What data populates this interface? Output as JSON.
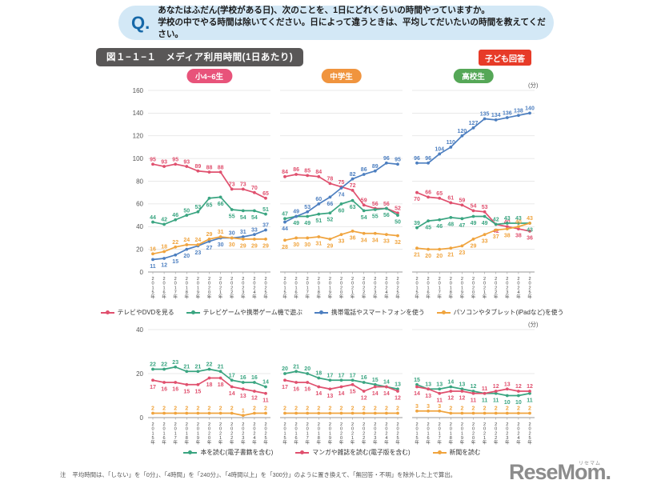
{
  "header": {
    "q_label": "Q.",
    "line1": "あなたはふだん(学校がある日)、次のことを、1日にどれくらいの時間やっていますか。",
    "line2": "学校の中でやる時間は除いてください。日によって違うときは、平均してだいたいの時間を教えてください。"
  },
  "title": {
    "figure_label": "図１−１−１　メディア利用時間(1日あたり)",
    "respondent_badge": "子ども回答"
  },
  "groups": [
    {
      "label": "小4~6生",
      "color": "#e8537a"
    },
    {
      "label": "中学生",
      "color": "#f0943e"
    },
    {
      "label": "高校生",
      "color": "#55a757"
    }
  ],
  "note": {
    "label": "注",
    "text": "平均時間は、「しない」を「0分」、「4時間」を「240分」、「4時間以上」を「300分」のように置き換えて、「無回答・不明」を除外した上で算出。"
  },
  "logo": {
    "brand": "ReseMom.",
    "ruby": "リセマム"
  },
  "chart_data": [
    {
      "type": "line",
      "title": "メディア利用時間(1日あたり) 上段",
      "unit": "(分)",
      "x": [
        "2015年",
        "2016年",
        "2017年",
        "2018年",
        "2019年",
        "2020年",
        "2021年",
        "2022年",
        "2023年",
        "2024年",
        "2025年"
      ],
      "ylim": [
        0,
        160
      ],
      "yticks": [
        0,
        20,
        40,
        60,
        80,
        100,
        120,
        140,
        160
      ],
      "grid": true,
      "legend_position": "bottom",
      "panels": [
        {
          "label": "小4~6生",
          "series": [
            {
              "name": "テレビやDVDを見る",
              "color": "#e0506e",
              "values": [
                95,
                93,
                95,
                93,
                89,
                88,
                88,
                73,
                73,
                70,
                65
              ]
            },
            {
              "name": "テレビゲームや携帯ゲーム機で遊ぶ",
              "color": "#3aa581",
              "values": [
                44,
                42,
                46,
                50,
                53,
                65,
                66,
                55,
                54,
                54,
                51
              ]
            },
            {
              "name": "携帯電話やスマートフォンを使う",
              "color": "#4d7fc0",
              "values": [
                11,
                12,
                15,
                20,
                23,
                27,
                30,
                30,
                31,
                33,
                37
              ]
            },
            {
              "name": "パソコンやタブレット(iPadなど)を使う",
              "color": "#f0a43e",
              "values": [
                16,
                18,
                22,
                24,
                24,
                29,
                31,
                30,
                29,
                29,
                29
              ]
            }
          ]
        },
        {
          "label": "中学生",
          "series": [
            {
              "name": "テレビやDVDを見る",
              "color": "#e0506e",
              "values": [
                84,
                86,
                85,
                84,
                78,
                75,
                72,
                59,
                56,
                56,
                52
              ]
            },
            {
              "name": "テレビゲームや携帯ゲーム機で遊ぶ",
              "color": "#3aa581",
              "values": [
                47,
                49,
                49,
                51,
                52,
                60,
                63,
                54,
                55,
                56,
                50
              ]
            },
            {
              "name": "携帯電話やスマートフォンを使う",
              "color": "#4d7fc0",
              "values": [
                44,
                49,
                53,
                60,
                66,
                74,
                82,
                86,
                89,
                96,
                95
              ]
            },
            {
              "name": "パソコンやタブレット(iPadなど)を使う",
              "color": "#f0a43e",
              "values": [
                28,
                30,
                30,
                31,
                29,
                33,
                36,
                34,
                34,
                33,
                32
              ]
            }
          ]
        },
        {
          "label": "高校生",
          "series": [
            {
              "name": "テレビやDVDを見る",
              "color": "#e0506e",
              "values": [
                70,
                66,
                65,
                61,
                59,
                54,
                53,
                42,
                40,
                38,
                36
              ]
            },
            {
              "name": "テレビゲームや携帯ゲーム機で遊ぶ",
              "color": "#3aa581",
              "values": [
                39,
                45,
                46,
                48,
                47,
                49,
                49,
                42,
                43,
                43,
                43
              ]
            },
            {
              "name": "携帯電話やスマートフォンを使う",
              "color": "#4d7fc0",
              "values": [
                96,
                96,
                104,
                110,
                120,
                127,
                135,
                134,
                136,
                138,
                140
              ]
            },
            {
              "name": "パソコンやタブレット(iPadなど)を使う",
              "color": "#f0a43e",
              "values": [
                21,
                20,
                20,
                21,
                23,
                29,
                33,
                37,
                38,
                40,
                43
              ]
            }
          ]
        }
      ]
    },
    {
      "type": "line",
      "title": "メディア利用時間(1日あたり) 下段",
      "unit": "(分)",
      "x": [
        "2015年",
        "2016年",
        "2017年",
        "2018年",
        "2019年",
        "2020年",
        "2021年",
        "2022年",
        "2023年",
        "2024年",
        "2025年"
      ],
      "ylim": [
        0,
        40
      ],
      "yticks": [
        0,
        20,
        40
      ],
      "grid": true,
      "legend_position": "bottom",
      "panels": [
        {
          "label": "小4~6生",
          "series": [
            {
              "name": "本を読む(電子書籍を含む)",
              "color": "#3aa581",
              "values": [
                22,
                22,
                23,
                21,
                21,
                22,
                21,
                17,
                16,
                16,
                14
              ]
            },
            {
              "name": "マンガや雑誌を読む(電子版を含む)",
              "color": "#e0506e",
              "values": [
                17,
                16,
                16,
                15,
                15,
                18,
                18,
                14,
                13,
                12,
                11
              ]
            },
            {
              "name": "新聞を読む",
              "color": "#f0a43e",
              "values": [
                2,
                2,
                2,
                2,
                2,
                2,
                2,
                2,
                1,
                2,
                2
              ]
            }
          ]
        },
        {
          "label": "中学生",
          "series": [
            {
              "name": "本を読む(電子書籍を含む)",
              "color": "#3aa581",
              "values": [
                20,
                21,
                20,
                18,
                17,
                17,
                17,
                16,
                15,
                14,
                13
              ]
            },
            {
              "name": "マンガや雑誌を読む(電子版を含む)",
              "color": "#e0506e",
              "values": [
                17,
                16,
                16,
                14,
                13,
                14,
                15,
                12,
                14,
                14,
                12
              ]
            },
            {
              "name": "新聞を読む",
              "color": "#f0a43e",
              "values": [
                2,
                2,
                2,
                2,
                2,
                2,
                2,
                2,
                2,
                2,
                2
              ]
            }
          ]
        },
        {
          "label": "高校生",
          "series": [
            {
              "name": "本を読む(電子書籍を含む)",
              "color": "#3aa581",
              "values": [
                15,
                13,
                13,
                14,
                13,
                12,
                11,
                11,
                10,
                10,
                11
              ]
            },
            {
              "name": "マンガや雑誌を読む(電子版を含む)",
              "color": "#e0506e",
              "values": [
                14,
                13,
                11,
                12,
                12,
                11,
                11,
                12,
                13,
                12,
                12
              ]
            },
            {
              "name": "新聞を読む",
              "color": "#f0a43e",
              "values": [
                3,
                3,
                3,
                2,
                2,
                2,
                2,
                2,
                2,
                2,
                2
              ]
            }
          ]
        }
      ]
    }
  ]
}
